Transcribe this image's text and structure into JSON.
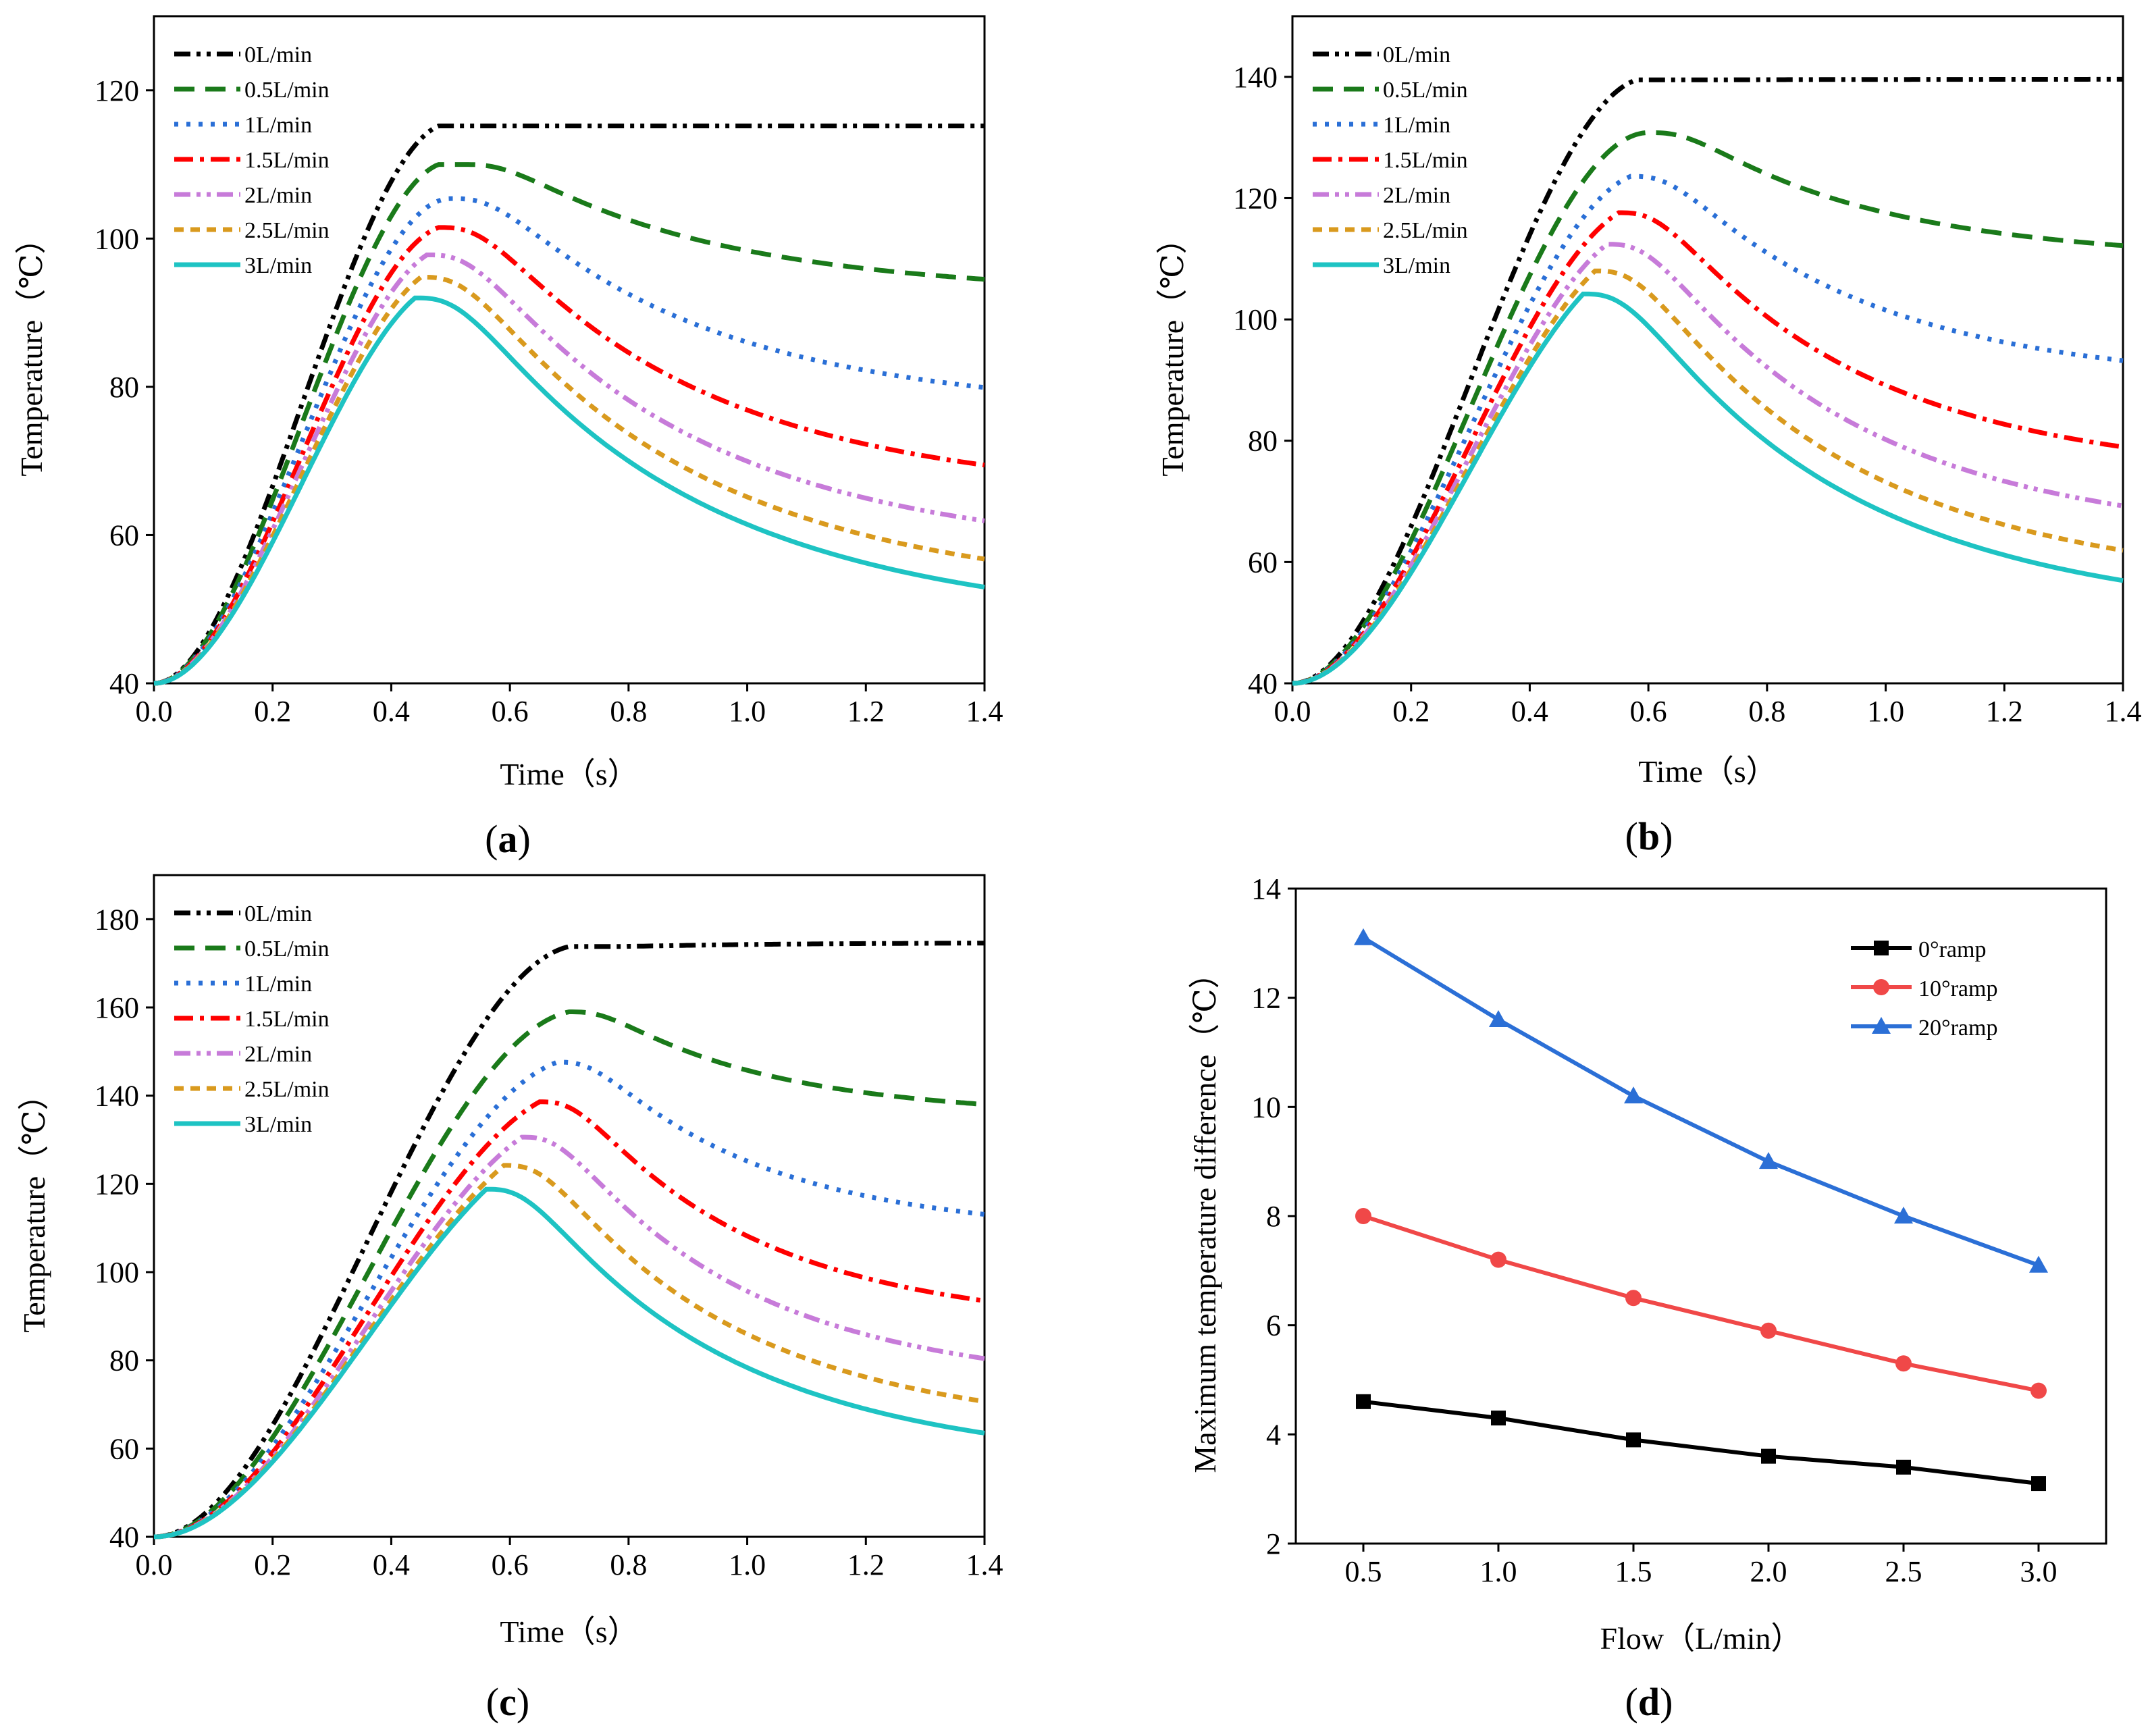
{
  "chart_data": [
    {
      "id": "a",
      "type": "line",
      "panel_label": "a",
      "xlabel": "Time（s）",
      "ylabel": "Temperature（℃）",
      "xlim": [
        0,
        1.4
      ],
      "ylim": [
        40,
        130
      ],
      "xticks": [
        "0.0",
        "0.2",
        "0.4",
        "0.6",
        "0.8",
        "1.0",
        "1.2",
        "1.4"
      ],
      "xtick_values": [
        0,
        0.2,
        0.4,
        0.6,
        0.8,
        1.0,
        1.2,
        1.4
      ],
      "yticks": [
        "40",
        "60",
        "80",
        "100",
        "120"
      ],
      "ytick_values": [
        40,
        60,
        80,
        100,
        120
      ],
      "legend_position": "top-left",
      "model": {
        "rise_end": 0.5,
        "cool_start": 0.44
      },
      "series": [
        {
          "name": "0L/min",
          "color": "#000000",
          "dash": "dashdotdot",
          "peak_t": 0.52,
          "peak_T": 115.2,
          "end_T": 115.2
        },
        {
          "name": "0.5L/min",
          "color": "#1a7a1a",
          "dash": "dash",
          "peak_t": 0.52,
          "peak_T": 110.0,
          "end_T": 94.2
        },
        {
          "name": "1L/min",
          "color": "#2a6fd6",
          "dash": "dot",
          "peak_t": 0.5,
          "peak_T": 105.4,
          "end_T": 79.4
        },
        {
          "name": "1.5L/min",
          "color": "#ff0000",
          "dash": "dashdot",
          "peak_t": 0.48,
          "peak_T": 101.5,
          "end_T": 68.8
        },
        {
          "name": "2L/min",
          "color": "#c77bd9",
          "dash": "dashdotdot",
          "peak_t": 0.46,
          "peak_T": 97.8,
          "end_T": 61.2
        },
        {
          "name": "2.5L/min",
          "color": "#d99a1e",
          "dash": "shortdash",
          "peak_t": 0.45,
          "peak_T": 94.8,
          "end_T": 56.0
        },
        {
          "name": "3L/min",
          "color": "#1ec3c3",
          "dash": "solid",
          "peak_t": 0.44,
          "peak_T": 92.0,
          "end_T": 52.2
        }
      ]
    },
    {
      "id": "b",
      "type": "line",
      "panel_label": "b",
      "xlabel": "Time（s）",
      "ylabel": "Temperature（℃）",
      "xlim": [
        0,
        1.4
      ],
      "ylim": [
        40,
        150
      ],
      "xticks": [
        "0.0",
        "0.2",
        "0.4",
        "0.6",
        "0.8",
        "1.0",
        "1.2",
        "1.4"
      ],
      "xtick_values": [
        0,
        0.2,
        0.4,
        0.6,
        0.8,
        1.0,
        1.2,
        1.4
      ],
      "yticks": [
        "40",
        "60",
        "80",
        "100",
        "120",
        "140"
      ],
      "ytick_values": [
        40,
        60,
        80,
        100,
        120,
        140
      ],
      "legend_position": "top-left",
      "model": {
        "rise_end": 0.6,
        "cool_start": 0.49
      },
      "series": [
        {
          "name": "0L/min",
          "color": "#000000",
          "dash": "dashdotdot",
          "peak_t": 0.62,
          "peak_T": 139.5,
          "end_T": 139.6
        },
        {
          "name": "0.5L/min",
          "color": "#1a7a1a",
          "dash": "dash",
          "peak_t": 0.6,
          "peak_T": 130.8,
          "end_T": 111.8
        },
        {
          "name": "1L/min",
          "color": "#2a6fd6",
          "dash": "dot",
          "peak_t": 0.57,
          "peak_T": 123.6,
          "end_T": 92.6
        },
        {
          "name": "1.5L/min",
          "color": "#ff0000",
          "dash": "dashdot",
          "peak_t": 0.55,
          "peak_T": 117.6,
          "end_T": 78.2
        },
        {
          "name": "2L/min",
          "color": "#c77bd9",
          "dash": "dashdotdot",
          "peak_t": 0.53,
          "peak_T": 112.4,
          "end_T": 68.4
        },
        {
          "name": "2.5L/min",
          "color": "#d99a1e",
          "dash": "shortdash",
          "peak_t": 0.51,
          "peak_T": 108.0,
          "end_T": 61.0
        },
        {
          "name": "3L/min",
          "color": "#1ec3c3",
          "dash": "solid",
          "peak_t": 0.49,
          "peak_T": 104.2,
          "end_T": 56.0
        }
      ]
    },
    {
      "id": "c",
      "type": "line",
      "panel_label": "c",
      "xlabel": "Time（s）",
      "ylabel": "Temperature（℃）",
      "xlim": [
        0,
        1.4
      ],
      "ylim": [
        40,
        190
      ],
      "xticks": [
        "0.0",
        "0.2",
        "0.4",
        "0.6",
        "0.8",
        "1.0",
        "1.2",
        "1.4"
      ],
      "xtick_values": [
        0,
        0.2,
        0.4,
        0.6,
        0.8,
        1.0,
        1.2,
        1.4
      ],
      "yticks": [
        "40",
        "60",
        "80",
        "100",
        "120",
        "140",
        "160",
        "180"
      ],
      "ytick_values": [
        40,
        60,
        80,
        100,
        120,
        140,
        160,
        180
      ],
      "legend_position": "top-left",
      "model": {
        "rise_end": 0.72,
        "cool_start": 0.56
      },
      "series": [
        {
          "name": "0L/min",
          "color": "#000000",
          "dash": "dashdotdot",
          "peak_t": 0.74,
          "peak_T": 173.8,
          "end_T": 174.6
        },
        {
          "name": "0.5L/min",
          "color": "#1a7a1a",
          "dash": "dash",
          "peak_t": 0.7,
          "peak_T": 159.0,
          "end_T": 137.6
        },
        {
          "name": "1L/min",
          "color": "#2a6fd6",
          "dash": "dot",
          "peak_t": 0.68,
          "peak_T": 147.6,
          "end_T": 112.4
        },
        {
          "name": "1.5L/min",
          "color": "#ff0000",
          "dash": "dashdot",
          "peak_t": 0.65,
          "peak_T": 138.6,
          "end_T": 92.6
        },
        {
          "name": "2L/min",
          "color": "#c77bd9",
          "dash": "dashdotdot",
          "peak_t": 0.62,
          "peak_T": 130.6,
          "end_T": 79.4
        },
        {
          "name": "2.5L/min",
          "color": "#d99a1e",
          "dash": "shortdash",
          "peak_t": 0.59,
          "peak_T": 124.2,
          "end_T": 69.6
        },
        {
          "name": "3L/min",
          "color": "#1ec3c3",
          "dash": "solid",
          "peak_t": 0.56,
          "peak_T": 118.8,
          "end_T": 62.4
        }
      ]
    },
    {
      "id": "d",
      "type": "line",
      "panel_label": "d",
      "xlabel": "Flow（L/min）",
      "ylabel": "Maximum temperature difference（℃）",
      "xlim": [
        0.25,
        3.25
      ],
      "ylim": [
        2,
        14
      ],
      "xticks": [
        "0.5",
        "1.0",
        "1.5",
        "2.0",
        "2.5",
        "3.0"
      ],
      "xtick_values": [
        0.5,
        1.0,
        1.5,
        2.0,
        2.5,
        3.0
      ],
      "yticks": [
        "2",
        "4",
        "6",
        "8",
        "10",
        "12",
        "14"
      ],
      "ytick_values": [
        2,
        4,
        6,
        8,
        10,
        12,
        14
      ],
      "legend_position": "top-right",
      "x": [
        0.5,
        1.0,
        1.5,
        2.0,
        2.5,
        3.0
      ],
      "series": [
        {
          "name": "0°ramp",
          "color": "#000000",
          "marker": "square",
          "values": [
            4.6,
            4.3,
            3.9,
            3.6,
            3.4,
            3.1
          ]
        },
        {
          "name": "10°ramp",
          "color": "#f04848",
          "marker": "circle",
          "values": [
            8.0,
            7.2,
            6.5,
            5.9,
            5.3,
            4.8
          ]
        },
        {
          "name": "20°ramp",
          "color": "#2b6fd6",
          "marker": "triangle",
          "values": [
            13.1,
            11.6,
            10.2,
            9.0,
            8.0,
            7.1
          ]
        }
      ]
    }
  ]
}
